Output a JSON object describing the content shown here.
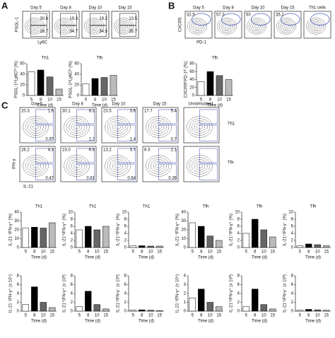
{
  "panels": {
    "a": "A",
    "b": "B",
    "c": "C"
  },
  "flow_a": {
    "y_label": "PSGL-1",
    "x_label": "Ly6C",
    "plots": [
      {
        "title": "Day 5",
        "numbers": [
          "30.6",
          "18.7"
        ]
      },
      {
        "title": "Day 8",
        "numbers": [
          "19.3",
          "34.7"
        ]
      },
      {
        "title": "Day 10",
        "numbers": [
          "19.2",
          "34.5"
        ]
      },
      {
        "title": "Day 15",
        "numbers": [
          "13.5",
          "35.7"
        ]
      }
    ]
  },
  "flow_b": {
    "y_label": "CXCR5",
    "x_label": "PD-1",
    "plots": [
      {
        "title": "Day 5",
        "numbers": [
          "32.5"
        ]
      },
      {
        "title": "Day 8",
        "numbers": [
          "57.3"
        ]
      },
      {
        "title": "Day 10",
        "numbers": [
          "50"
        ]
      },
      {
        "title": "Day 15",
        "numbers": [
          "35.2"
        ]
      },
      {
        "title": "Th1 cells",
        "numbers": []
      }
    ]
  },
  "flow_c": {
    "y_label": "IFN-γ",
    "x_label": "IL-21",
    "columns": [
      "Day 5",
      "Day 8",
      "Day 10",
      "Day 15",
      "Unstimulated"
    ],
    "row_labels": [
      "Th1",
      "Tfh"
    ],
    "rows": [
      [
        [
          "20.3",
          "1.6",
          "0.97"
        ],
        [
          "30.1",
          "8.3",
          "1.2"
        ],
        [
          "23.5",
          "3.6",
          "1.4"
        ],
        [
          "17.7",
          "5.4",
          "0.7"
        ],
        []
      ],
      [
        [
          "26.2",
          "4.3",
          "0.47"
        ],
        [
          "23.0",
          "6.9",
          "0.81"
        ],
        [
          "13.2",
          "3.7",
          "0.64"
        ],
        [
          "8.3",
          "2.1",
          "0.36"
        ],
        []
      ]
    ]
  },
  "chart_data": [
    {
      "type": "bar",
      "title": "Th1",
      "ylabel": "PSGL-1ˡᵒLy6Cʰⁱ (%)",
      "xlabel": "Time (d)",
      "categories": [
        "5",
        "8",
        "10",
        "15"
      ],
      "values": [
        45,
        48,
        35,
        12
      ],
      "colors": [
        "#ffffff",
        "#000000",
        "#666666",
        "#bbbbbb"
      ],
      "ylim": [
        0,
        60
      ],
      "yticks": [
        0,
        20,
        40,
        60
      ]
    },
    {
      "type": "bar",
      "title": "Tfh",
      "ylabel": "PSGL-1ˡᵒLy6Cˡᵒ (%)",
      "xlabel": "Time (d)",
      "categories": [
        "5",
        "8",
        "10",
        "15"
      ],
      "values": [
        22,
        32,
        34,
        38
      ],
      "colors": [
        "#ffffff",
        "#000000",
        "#666666",
        "#bbbbbb"
      ],
      "ylim": [
        0,
        60
      ],
      "yticks": [
        0,
        20,
        40,
        60
      ]
    },
    {
      "type": "bar",
      "title": "Tfh",
      "ylabel": "CXCR5ʰⁱPD-1ʰⁱ (%)",
      "xlabel": "Time (d)",
      "categories": [
        "5",
        "8",
        "10",
        "15"
      ],
      "values": [
        35,
        60,
        50,
        40
      ],
      "colors": [
        "#ffffff",
        "#000000",
        "#666666",
        "#bbbbbb"
      ],
      "ylim": [
        0,
        80
      ],
      "yticks": [
        0,
        20,
        40,
        60,
        80
      ]
    },
    {
      "type": "bar",
      "title": "Th1",
      "ylabel": "IL-21⁻IFN-γ⁺ (%)",
      "xlabel": "Time (d)",
      "categories": [
        "5",
        "8",
        "10",
        "15"
      ],
      "values": [
        22,
        23,
        22,
        28
      ],
      "colors": [
        "#ffffff",
        "#000000",
        "#666666",
        "#bbbbbb"
      ],
      "ylim": [
        0,
        40
      ],
      "yticks": [
        0,
        10,
        20,
        30,
        40
      ]
    },
    {
      "type": "bar",
      "title": "Th1",
      "ylabel": "IL-21⁺IFN-γ⁺ (%)",
      "xlabel": "Time (d)",
      "categories": [
        "5",
        "8",
        "10",
        "15"
      ],
      "values": [
        5,
        6,
        5,
        6
      ],
      "colors": [
        "#ffffff",
        "#000000",
        "#666666",
        "#bbbbbb"
      ],
      "ylim": [
        0,
        10
      ],
      "yticks": [
        0,
        2,
        4,
        6,
        8,
        10
      ]
    },
    {
      "type": "bar",
      "title": "Th1",
      "ylabel": "IL-21⁺IFN-γ⁻ (%)",
      "xlabel": "Time (d)",
      "categories": [
        "5",
        "8",
        "10",
        "15"
      ],
      "values": [
        0.5,
        0.5,
        0.4,
        0.4
      ],
      "colors": [
        "#ffffff",
        "#000000",
        "#666666",
        "#bbbbbb"
      ],
      "ylim": [
        0,
        10
      ],
      "yticks": [
        0,
        2,
        4,
        6,
        8,
        10
      ]
    },
    {
      "type": "bar",
      "title": "Tfh",
      "ylabel": "IL-21⁻IFN-γ⁺ (%)",
      "xlabel": "Time (d)",
      "categories": [
        "5",
        "8",
        "10",
        "15"
      ],
      "values": [
        28,
        24,
        13,
        8
      ],
      "colors": [
        "#ffffff",
        "#000000",
        "#666666",
        "#bbbbbb"
      ],
      "ylim": [
        0,
        40
      ],
      "yticks": [
        0,
        10,
        20,
        30,
        40
      ]
    },
    {
      "type": "bar",
      "title": "Tfh",
      "ylabel": "IL-21⁺IFN-γ⁺ (%)",
      "xlabel": "Time (d)",
      "categories": [
        "5",
        "8",
        "10",
        "15"
      ],
      "values": [
        4,
        8,
        5,
        3
      ],
      "colors": [
        "#ffffff",
        "#000000",
        "#666666",
        "#bbbbbb"
      ],
      "ylim": [
        0,
        10
      ],
      "yticks": [
        0,
        2,
        4,
        6,
        8,
        10
      ]
    },
    {
      "type": "bar",
      "title": "Tfh",
      "ylabel": "IL-21⁺IFN-γ⁻ (%)",
      "xlabel": "Time (d)",
      "categories": [
        "5",
        "8",
        "10",
        "15"
      ],
      "values": [
        0.5,
        1,
        0.8,
        0.5
      ],
      "colors": [
        "#ffffff",
        "#000000",
        "#666666",
        "#bbbbbb"
      ],
      "ylim": [
        0,
        10
      ],
      "yticks": [
        0,
        2,
        4,
        6,
        8,
        10
      ]
    },
    {
      "type": "bar",
      "ylabel": "IL-21⁻IFN-γ⁺ (x 10⁴)",
      "xlabel": "Time (d)",
      "categories": [
        "5",
        "8",
        "10",
        "15"
      ],
      "values": [
        1.5,
        5.5,
        2,
        0.8
      ],
      "colors": [
        "#ffffff",
        "#000000",
        "#666666",
        "#bbbbbb"
      ],
      "ylim": [
        0,
        8
      ],
      "yticks": [
        0,
        2,
        4,
        6,
        8
      ]
    },
    {
      "type": "bar",
      "ylabel": "IL-21⁺IFN-γ⁺ (x 10³)",
      "xlabel": "Time (d)",
      "categories": [
        "5",
        "8",
        "10",
        "15"
      ],
      "values": [
        1,
        4.5,
        1.5,
        0.5
      ],
      "colors": [
        "#ffffff",
        "#000000",
        "#666666",
        "#bbbbbb"
      ],
      "ylim": [
        0,
        8
      ],
      "yticks": [
        0,
        2,
        4,
        6,
        8
      ]
    },
    {
      "type": "bar",
      "ylabel": "IL-21⁺IFN-γ⁻ (x 10³)",
      "xlabel": "Time (d)",
      "categories": [
        "5",
        "8",
        "10",
        "15"
      ],
      "values": [
        0.2,
        0.3,
        0.2,
        0.1
      ],
      "colors": [
        "#ffffff",
        "#000000",
        "#666666",
        "#bbbbbb"
      ],
      "ylim": [
        0,
        8
      ],
      "yticks": [
        0,
        2,
        4,
        6,
        8
      ]
    },
    {
      "type": "bar",
      "ylabel": "IL-21⁻IFN-γ⁺ (x 10⁴)",
      "xlabel": "Time (d)",
      "categories": [
        "5",
        "8",
        "10",
        "15"
      ],
      "values": [
        1.5,
        2.5,
        1,
        0.5
      ],
      "colors": [
        "#ffffff",
        "#000000",
        "#666666",
        "#bbbbbb"
      ],
      "ylim": [
        0,
        4
      ],
      "yticks": [
        0,
        1,
        2,
        3,
        4
      ]
    },
    {
      "type": "bar",
      "ylabel": "IL-21⁺IFN-γ⁺ (x 10³)",
      "xlabel": "Time (d)",
      "categories": [
        "5",
        "8",
        "10",
        "15"
      ],
      "values": [
        1,
        5,
        1.5,
        0.5
      ],
      "colors": [
        "#ffffff",
        "#000000",
        "#666666",
        "#bbbbbb"
      ],
      "ylim": [
        0,
        8
      ],
      "yticks": [
        0,
        2,
        4,
        6,
        8
      ]
    },
    {
      "type": "bar",
      "ylabel": "IL-21⁺IFN-γ⁻ (x 10³)",
      "xlabel": "Time (d)",
      "categories": [
        "5",
        "8",
        "10",
        "15"
      ],
      "values": [
        0.2,
        0.4,
        0.3,
        0.2
      ],
      "colors": [
        "#ffffff",
        "#000000",
        "#666666",
        "#bbbbbb"
      ],
      "ylim": [
        0,
        8
      ],
      "yticks": [
        0,
        2,
        4,
        6,
        8
      ]
    }
  ]
}
